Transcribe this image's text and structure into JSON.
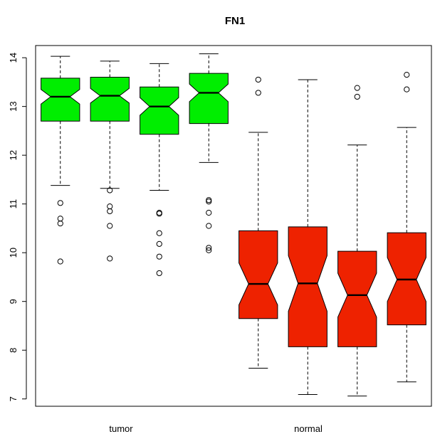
{
  "chart_data": {
    "type": "boxplot",
    "title": "FN1",
    "xlabel": "",
    "ylabel": "",
    "ylim": [
      6.85,
      14.25
    ],
    "y_ticks": [
      7,
      8,
      9,
      10,
      11,
      12,
      13,
      14
    ],
    "y_tick_labels": [
      "7",
      "8",
      "9",
      "10",
      "11",
      "12",
      "13",
      "14"
    ],
    "group_labels": [
      "tumor",
      "normal"
    ],
    "grid": false,
    "notched": true,
    "boxes": [
      {
        "group": "tumor",
        "color": "#00ee00",
        "whisker_low": 11.38,
        "q1": 12.7,
        "median": 13.2,
        "q3": 13.58,
        "whisker_high": 14.03,
        "notch_low": 13.05,
        "notch_high": 13.35,
        "outliers": [
          11.02,
          10.7,
          10.6,
          9.82
        ]
      },
      {
        "group": "tumor",
        "color": "#00ee00",
        "whisker_low": 11.32,
        "q1": 12.7,
        "median": 13.22,
        "q3": 13.6,
        "whisker_high": 13.93,
        "notch_low": 13.07,
        "notch_high": 13.37,
        "outliers": [
          11.28,
          10.95,
          10.85,
          10.55,
          9.88
        ]
      },
      {
        "group": "tumor",
        "color": "#00ee00",
        "whisker_low": 11.28,
        "q1": 12.43,
        "median": 13.0,
        "q3": 13.4,
        "whisker_high": 13.88,
        "notch_low": 12.82,
        "notch_high": 13.18,
        "outliers": [
          10.82,
          10.8,
          10.4,
          10.18,
          9.92,
          9.58
        ]
      },
      {
        "group": "tumor",
        "color": "#00ee00",
        "whisker_low": 11.85,
        "q1": 12.65,
        "median": 13.28,
        "q3": 13.68,
        "whisker_high": 14.08,
        "notch_low": 13.1,
        "notch_high": 13.46,
        "outliers": [
          11.08,
          11.05,
          10.82,
          10.55,
          10.1,
          10.05
        ]
      },
      {
        "group": "normal",
        "color": "#ee2200",
        "whisker_low": 7.63,
        "q1": 8.65,
        "median": 9.36,
        "q3": 10.45,
        "whisker_high": 12.47,
        "notch_low": 8.93,
        "notch_high": 9.79,
        "outliers": [
          13.55,
          13.28
        ]
      },
      {
        "group": "normal",
        "color": "#ee2200",
        "whisker_low": 7.09,
        "q1": 8.07,
        "median": 9.37,
        "q3": 10.53,
        "whisker_high": 13.55,
        "notch_low": 8.8,
        "notch_high": 9.94,
        "outliers": []
      },
      {
        "group": "normal",
        "color": "#ee2200",
        "whisker_low": 7.06,
        "q1": 8.07,
        "median": 9.13,
        "q3": 10.03,
        "whisker_high": 12.21,
        "notch_low": 8.68,
        "notch_high": 9.58,
        "outliers": [
          13.38,
          13.2
        ]
      },
      {
        "group": "normal",
        "color": "#ee2200",
        "whisker_low": 7.35,
        "q1": 8.52,
        "median": 9.45,
        "q3": 10.41,
        "whisker_high": 12.57,
        "notch_low": 9.0,
        "notch_high": 9.9,
        "outliers": [
          13.65,
          13.35
        ]
      }
    ]
  }
}
